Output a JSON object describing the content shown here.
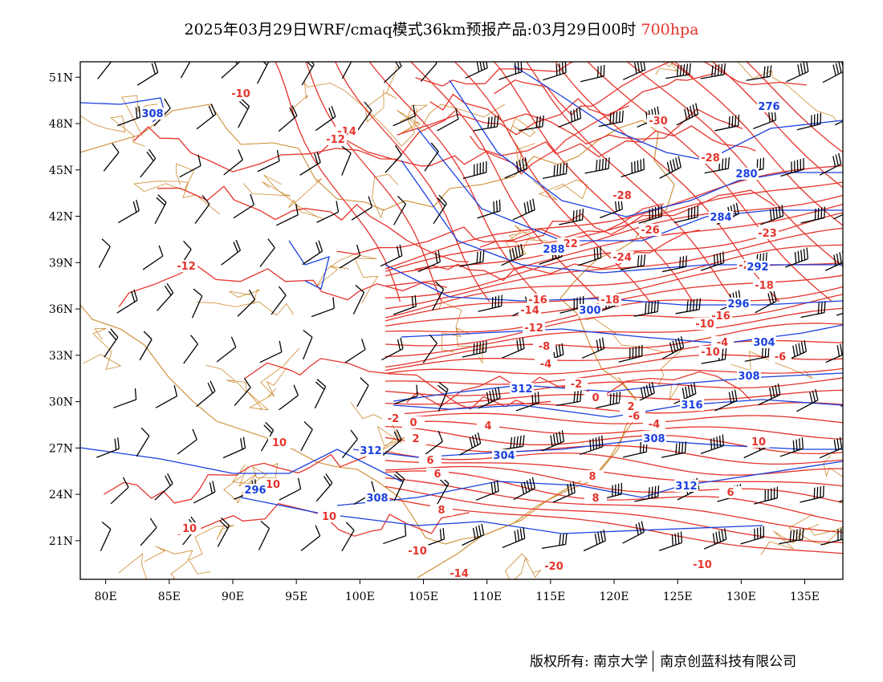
{
  "title": {
    "main": "2025年03月29日WRF/cmaq模式36km预报产品:03月29日00时",
    "level": "700hpa"
  },
  "map": {
    "lon_range": [
      78,
      138
    ],
    "lat_range": [
      18.5,
      52
    ],
    "lon_ticks": [
      "80E",
      "85E",
      "90E",
      "95E",
      "100E",
      "105E",
      "110E",
      "115E",
      "120E",
      "125E",
      "130E",
      "135E"
    ],
    "lat_ticks": [
      "51N",
      "48N",
      "45N",
      "42N",
      "39N",
      "36N",
      "33N",
      "30N",
      "27N",
      "24N",
      "21N"
    ],
    "colors": {
      "temperature": "#e5342c",
      "height": "#1a3fe0",
      "border": "#cc8a2e",
      "wind": "#000000"
    },
    "temperature_labels": [
      "-10",
      "-14",
      "-12",
      "-30",
      "-28",
      "-28",
      "-26",
      "-22",
      "-24",
      "-23",
      "-20",
      "-18",
      "-16",
      "-18",
      "-16",
      "-14",
      "-12",
      "-10",
      "-8",
      "-4",
      "-10",
      "-6",
      "-4",
      "-2",
      "0",
      "2",
      "-6",
      "-4",
      "-2",
      "0",
      "2",
      "4",
      "6",
      "6",
      "8",
      "8",
      "8",
      "6",
      "10",
      "10",
      "10",
      "10",
      "10",
      "-10",
      "-20"
    ],
    "height_labels": [
      "308",
      "276",
      "280",
      "284",
      "288",
      "292",
      "296",
      "300",
      "304",
      "308",
      "312",
      "316",
      "312",
      "308",
      "304",
      "312",
      "296"
    ]
  },
  "footer": {
    "left": "版权所有: 南京大学",
    "right": "南京创蓝科技有限公司"
  }
}
